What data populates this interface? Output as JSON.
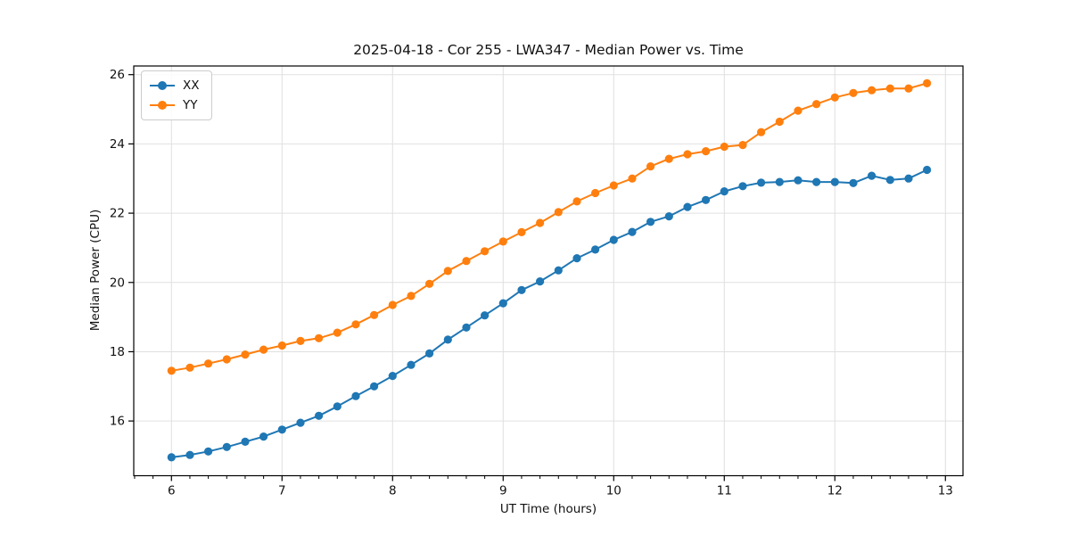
{
  "figure": {
    "title": "2025-04-18 - Cor 255 - LWA347 - Median Power vs. Time",
    "xlabel": "UT Time (hours)",
    "ylabel": "Median Power (CPU)"
  },
  "legend": {
    "items": [
      {
        "label": "XX",
        "color": "#1f77b4"
      },
      {
        "label": "YY",
        "color": "#ff7f0e"
      }
    ]
  },
  "colors": {
    "series_xx": "#1f77b4",
    "series_yy": "#ff7f0e",
    "grid": "#e0e0e0",
    "spine": "#000000",
    "background": "#ffffff"
  },
  "chart_data": {
    "type": "line",
    "title": "2025-04-18 - Cor 255 - LWA347 - Median Power vs. Time",
    "xlabel": "UT Time (hours)",
    "ylabel": "Median Power (CPU)",
    "grid": true,
    "legend_position": "upper left",
    "xlim": [
      5.659,
      13.159
    ],
    "ylim": [
      14.42,
      26.25
    ],
    "x_ticks": [
      6,
      7,
      8,
      9,
      10,
      11,
      12,
      13
    ],
    "y_ticks": [
      16,
      18,
      20,
      22,
      24,
      26
    ],
    "x_minor_step": 0.1666667,
    "x": [
      6.0,
      6.167,
      6.333,
      6.5,
      6.667,
      6.833,
      7.0,
      7.167,
      7.333,
      7.5,
      7.667,
      7.833,
      8.0,
      8.167,
      8.333,
      8.5,
      8.667,
      8.833,
      9.0,
      9.167,
      9.333,
      9.5,
      9.667,
      9.833,
      10.0,
      10.167,
      10.333,
      10.5,
      10.667,
      10.833,
      11.0,
      11.167,
      11.333,
      11.5,
      11.667,
      11.833,
      12.0,
      12.167,
      12.333,
      12.5,
      12.667,
      12.833
    ],
    "series": [
      {
        "name": "XX",
        "color": "#1f77b4",
        "marker": "circle",
        "values": [
          14.95,
          15.02,
          15.12,
          15.25,
          15.4,
          15.55,
          15.75,
          15.95,
          16.15,
          16.42,
          16.72,
          17.0,
          17.3,
          17.62,
          17.95,
          18.35,
          18.7,
          19.05,
          19.4,
          19.78,
          20.03,
          20.35,
          20.7,
          20.95,
          21.23,
          21.46,
          21.75,
          21.91,
          22.18,
          22.38,
          22.63,
          22.78,
          22.88,
          22.9,
          22.95,
          22.9,
          22.9,
          22.87,
          23.08,
          22.96,
          23.0,
          23.25
        ]
      },
      {
        "name": "YY",
        "color": "#ff7f0e",
        "marker": "circle",
        "values": [
          17.45,
          17.54,
          17.66,
          17.78,
          17.92,
          18.06,
          18.18,
          18.31,
          18.39,
          18.55,
          18.79,
          19.06,
          19.35,
          19.61,
          19.96,
          20.33,
          20.62,
          20.9,
          21.18,
          21.45,
          21.72,
          22.03,
          22.34,
          22.58,
          22.8,
          23.0,
          23.35,
          23.57,
          23.7,
          23.79,
          23.92,
          23.97,
          24.34,
          24.64,
          24.96,
          25.15,
          25.34,
          25.47,
          25.55,
          25.6,
          25.6,
          25.75
        ]
      }
    ]
  }
}
